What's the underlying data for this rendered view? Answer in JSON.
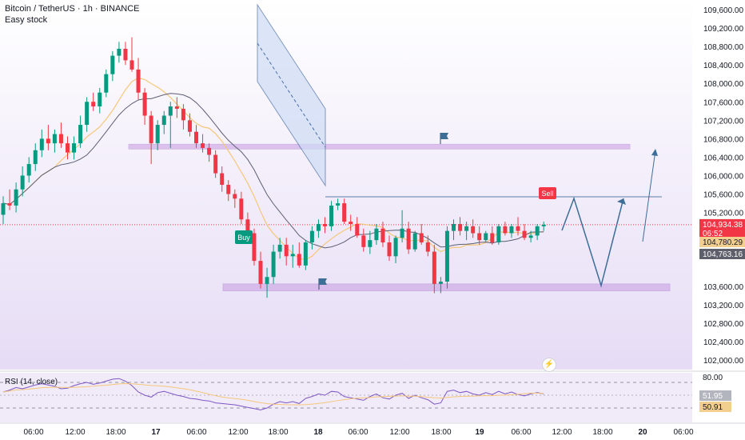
{
  "header": {
    "title": "Bitcoin / TetherUS · 1h · BINANCE",
    "subtitle": "Easy stock"
  },
  "rsi_label": "RSI (14, close)",
  "colors": {
    "up": "#089981",
    "down": "#f23645",
    "ma_fast": "#f5c77a",
    "ma_slow": "#5d5f73",
    "zone": "#c79be0",
    "channel": "#4a6fa5",
    "projection": "#3c6e97",
    "price_label": "#f23645",
    "ma_label": "#f2cf8f",
    "ma2_label": "#5d606b",
    "background_top": "#ffffff",
    "background_bottom": "#e6dcf5"
  },
  "icons": [
    "flag-icon",
    "flag-icon",
    "lightning-icon"
  ],
  "chart_data": {
    "type": "candlestick",
    "title": "Bitcoin / TetherUS · 1h · BINANCE",
    "ylim": [
      101700,
      109800
    ],
    "y_ticks": [
      "109,600.00",
      "109,200.00",
      "108,800.00",
      "108,400.00",
      "108,000.00",
      "107,600.00",
      "107,200.00",
      "106,800.00",
      "106,400.00",
      "106,000.00",
      "105,600.00",
      "105,200.00",
      "103,600.00",
      "103,200.00",
      "102,800.00",
      "102,400.00",
      "102,000.00"
    ],
    "x_ticks": [
      "06:00",
      "12:00",
      "18:00",
      "17",
      "06:00",
      "12:00",
      "18:00",
      "18",
      "06:00",
      "12:00",
      "18:00",
      "19",
      "06:00",
      "12:00",
      "18:00",
      "20",
      "06:00"
    ],
    "price_labels": {
      "last": "104,934.38",
      "countdown": "06:52",
      "ma_fast": "104,780.29",
      "ma_slow": "104,763.16"
    },
    "zones": [
      {
        "name": "resistance",
        "from": 106590,
        "to": 106680
      },
      {
        "name": "support",
        "from": 103500,
        "to": 103650
      }
    ],
    "signals": [
      "Buy",
      "Sell"
    ],
    "candles": [
      {
        "o": 105150,
        "h": 105550,
        "l": 104950,
        "c": 105400
      },
      {
        "o": 105400,
        "h": 105700,
        "l": 105250,
        "c": 105350
      },
      {
        "o": 105350,
        "h": 105850,
        "l": 105200,
        "c": 105700
      },
      {
        "o": 105700,
        "h": 106200,
        "l": 105550,
        "c": 106000
      },
      {
        "o": 106000,
        "h": 106400,
        "l": 105850,
        "c": 106250
      },
      {
        "o": 106250,
        "h": 106700,
        "l": 106100,
        "c": 106550
      },
      {
        "o": 106550,
        "h": 107000,
        "l": 106400,
        "c": 106800
      },
      {
        "o": 106800,
        "h": 107100,
        "l": 106550,
        "c": 106700
      },
      {
        "o": 106700,
        "h": 107000,
        "l": 106500,
        "c": 106900
      },
      {
        "o": 106900,
        "h": 107150,
        "l": 106600,
        "c": 106700
      },
      {
        "o": 106700,
        "h": 106850,
        "l": 106350,
        "c": 106500
      },
      {
        "o": 106500,
        "h": 106850,
        "l": 106350,
        "c": 106700
      },
      {
        "o": 106700,
        "h": 107300,
        "l": 106600,
        "c": 107100
      },
      {
        "o": 107100,
        "h": 107700,
        "l": 106950,
        "c": 107600
      },
      {
        "o": 107600,
        "h": 107800,
        "l": 107400,
        "c": 107500
      },
      {
        "o": 107500,
        "h": 107900,
        "l": 107350,
        "c": 107800
      },
      {
        "o": 107800,
        "h": 108300,
        "l": 107700,
        "c": 108200
      },
      {
        "o": 108200,
        "h": 108700,
        "l": 108050,
        "c": 108600
      },
      {
        "o": 108600,
        "h": 108900,
        "l": 108450,
        "c": 108750
      },
      {
        "o": 108750,
        "h": 108900,
        "l": 108400,
        "c": 108500
      },
      {
        "o": 108500,
        "h": 109000,
        "l": 108250,
        "c": 108300
      },
      {
        "o": 108300,
        "h": 108550,
        "l": 107650,
        "c": 107800
      },
      {
        "o": 107800,
        "h": 107900,
        "l": 107100,
        "c": 107300
      },
      {
        "o": 107300,
        "h": 107400,
        "l": 106250,
        "c": 106700
      },
      {
        "o": 106700,
        "h": 107200,
        "l": 106550,
        "c": 107100
      },
      {
        "o": 107100,
        "h": 107400,
        "l": 106900,
        "c": 107300
      },
      {
        "o": 107300,
        "h": 107600,
        "l": 106600,
        "c": 107500
      },
      {
        "o": 107500,
        "h": 107700,
        "l": 107250,
        "c": 107450
      },
      {
        "o": 107450,
        "h": 107550,
        "l": 107000,
        "c": 107200
      },
      {
        "o": 107200,
        "h": 107350,
        "l": 106850,
        "c": 106950
      },
      {
        "o": 106950,
        "h": 107100,
        "l": 106600,
        "c": 106700
      },
      {
        "o": 106700,
        "h": 106900,
        "l": 106500,
        "c": 106600
      },
      {
        "o": 106600,
        "h": 106700,
        "l": 106300,
        "c": 106450
      },
      {
        "o": 106450,
        "h": 106550,
        "l": 105950,
        "c": 106050
      },
      {
        "o": 106050,
        "h": 106200,
        "l": 105650,
        "c": 105800
      },
      {
        "o": 105800,
        "h": 105900,
        "l": 105450,
        "c": 105600
      },
      {
        "o": 105600,
        "h": 105700,
        "l": 105300,
        "c": 105500
      },
      {
        "o": 105500,
        "h": 105650,
        "l": 104950,
        "c": 105050
      },
      {
        "o": 105050,
        "h": 105200,
        "l": 104600,
        "c": 104750
      },
      {
        "o": 104750,
        "h": 104850,
        "l": 104050,
        "c": 104150
      },
      {
        "o": 104150,
        "h": 104350,
        "l": 103550,
        "c": 103650
      },
      {
        "o": 103650,
        "h": 104000,
        "l": 103350,
        "c": 103800
      },
      {
        "o": 103800,
        "h": 104500,
        "l": 103650,
        "c": 104350
      },
      {
        "o": 104350,
        "h": 104650,
        "l": 104200,
        "c": 104500
      },
      {
        "o": 104500,
        "h": 104650,
        "l": 104050,
        "c": 104250
      },
      {
        "o": 104250,
        "h": 104500,
        "l": 104000,
        "c": 104300
      },
      {
        "o": 104300,
        "h": 104550,
        "l": 104000,
        "c": 104050
      },
      {
        "o": 104050,
        "h": 104600,
        "l": 103950,
        "c": 104550
      },
      {
        "o": 104550,
        "h": 104900,
        "l": 104400,
        "c": 104800
      },
      {
        "o": 104800,
        "h": 105050,
        "l": 104650,
        "c": 104950
      },
      {
        "o": 104950,
        "h": 105100,
        "l": 104750,
        "c": 104900
      },
      {
        "o": 104900,
        "h": 105450,
        "l": 104800,
        "c": 105350
      },
      {
        "o": 105350,
        "h": 105500,
        "l": 105250,
        "c": 105400
      },
      {
        "o": 105400,
        "h": 105500,
        "l": 104950,
        "c": 105000
      },
      {
        "o": 105000,
        "h": 105150,
        "l": 104800,
        "c": 104950
      },
      {
        "o": 104950,
        "h": 105100,
        "l": 104650,
        "c": 104700
      },
      {
        "o": 104700,
        "h": 104850,
        "l": 104350,
        "c": 104450
      },
      {
        "o": 104450,
        "h": 104800,
        "l": 104300,
        "c": 104600
      },
      {
        "o": 104600,
        "h": 104950,
        "l": 104500,
        "c": 104850
      },
      {
        "o": 104850,
        "h": 105000,
        "l": 104450,
        "c": 104550
      },
      {
        "o": 104550,
        "h": 104700,
        "l": 104150,
        "c": 104250
      },
      {
        "o": 104250,
        "h": 104700,
        "l": 104100,
        "c": 104650
      },
      {
        "o": 104650,
        "h": 105250,
        "l": 104550,
        "c": 104850
      },
      {
        "o": 104850,
        "h": 105000,
        "l": 104300,
        "c": 104400
      },
      {
        "o": 104400,
        "h": 104800,
        "l": 104350,
        "c": 104750
      },
      {
        "o": 104750,
        "h": 104950,
        "l": 104500,
        "c": 104550
      },
      {
        "o": 104550,
        "h": 104700,
        "l": 104250,
        "c": 104350
      },
      {
        "o": 104350,
        "h": 104500,
        "l": 103450,
        "c": 103650
      },
      {
        "o": 103650,
        "h": 103800,
        "l": 103450,
        "c": 103700
      },
      {
        "o": 103700,
        "h": 104900,
        "l": 103550,
        "c": 104800
      },
      {
        "o": 104800,
        "h": 105050,
        "l": 104600,
        "c": 104950
      },
      {
        "o": 104950,
        "h": 105100,
        "l": 104700,
        "c": 104800
      },
      {
        "o": 104800,
        "h": 105000,
        "l": 104600,
        "c": 104900
      },
      {
        "o": 104900,
        "h": 105050,
        "l": 104650,
        "c": 104750
      },
      {
        "o": 104750,
        "h": 104900,
        "l": 104500,
        "c": 104600
      },
      {
        "o": 104600,
        "h": 104800,
        "l": 104550,
        "c": 104750
      },
      {
        "o": 104750,
        "h": 104900,
        "l": 104500,
        "c": 104550
      },
      {
        "o": 104550,
        "h": 104950,
        "l": 104500,
        "c": 104900
      },
      {
        "o": 104900,
        "h": 105000,
        "l": 104700,
        "c": 104750
      },
      {
        "o": 104750,
        "h": 104950,
        "l": 104650,
        "c": 104900
      },
      {
        "o": 104900,
        "h": 105100,
        "l": 104700,
        "c": 104800
      },
      {
        "o": 104800,
        "h": 104950,
        "l": 104600,
        "c": 104650
      },
      {
        "o": 104650,
        "h": 104800,
        "l": 104550,
        "c": 104700
      },
      {
        "o": 104700,
        "h": 104950,
        "l": 104600,
        "c": 104900
      },
      {
        "o": 104900,
        "h": 105000,
        "l": 104800,
        "c": 104934
      }
    ],
    "rsi": {
      "ylim": [
        20,
        80
      ],
      "ticks": [
        "80.00"
      ],
      "value_label": "51.95",
      "ma_label": "50.91",
      "values": [
        55,
        58,
        62,
        60,
        63,
        66,
        68,
        66,
        64,
        60,
        61,
        65,
        68,
        70,
        67,
        69,
        72,
        75,
        76,
        72,
        65,
        55,
        50,
        47,
        54,
        56,
        53,
        50,
        48,
        45,
        44,
        42,
        41,
        38,
        37,
        36,
        35,
        33,
        31,
        29,
        27,
        30,
        36,
        40,
        38,
        40,
        37,
        45,
        48,
        52,
        50,
        56,
        55,
        48,
        46,
        44,
        42,
        48,
        52,
        46,
        44,
        50,
        53,
        45,
        50,
        46,
        43,
        36,
        38,
        56,
        58,
        54,
        56,
        52,
        50,
        54,
        51,
        56,
        52,
        55,
        51,
        49,
        52,
        54,
        52
      ]
    }
  }
}
